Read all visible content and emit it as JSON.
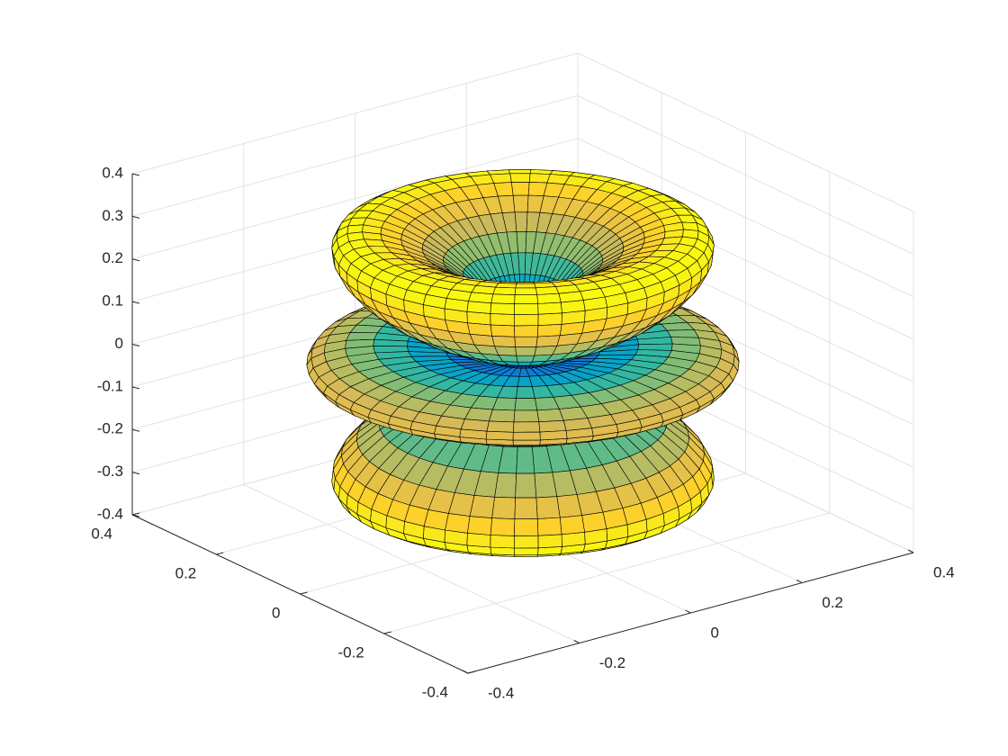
{
  "chart_data": {
    "type": "surface",
    "xlim": [
      -0.4,
      0.4
    ],
    "ylim": [
      -0.4,
      0.4
    ],
    "zlim": [
      -0.4,
      0.4
    ],
    "xticks": [
      -0.4,
      -0.2,
      0,
      0.2,
      0.4
    ],
    "yticks": [
      -0.4,
      -0.2,
      0,
      0.2,
      0.4
    ],
    "zticks": [
      -0.4,
      -0.3,
      -0.2,
      -0.1,
      0,
      0.1,
      0.2,
      0.3,
      0.4
    ],
    "grid": true
  }
}
